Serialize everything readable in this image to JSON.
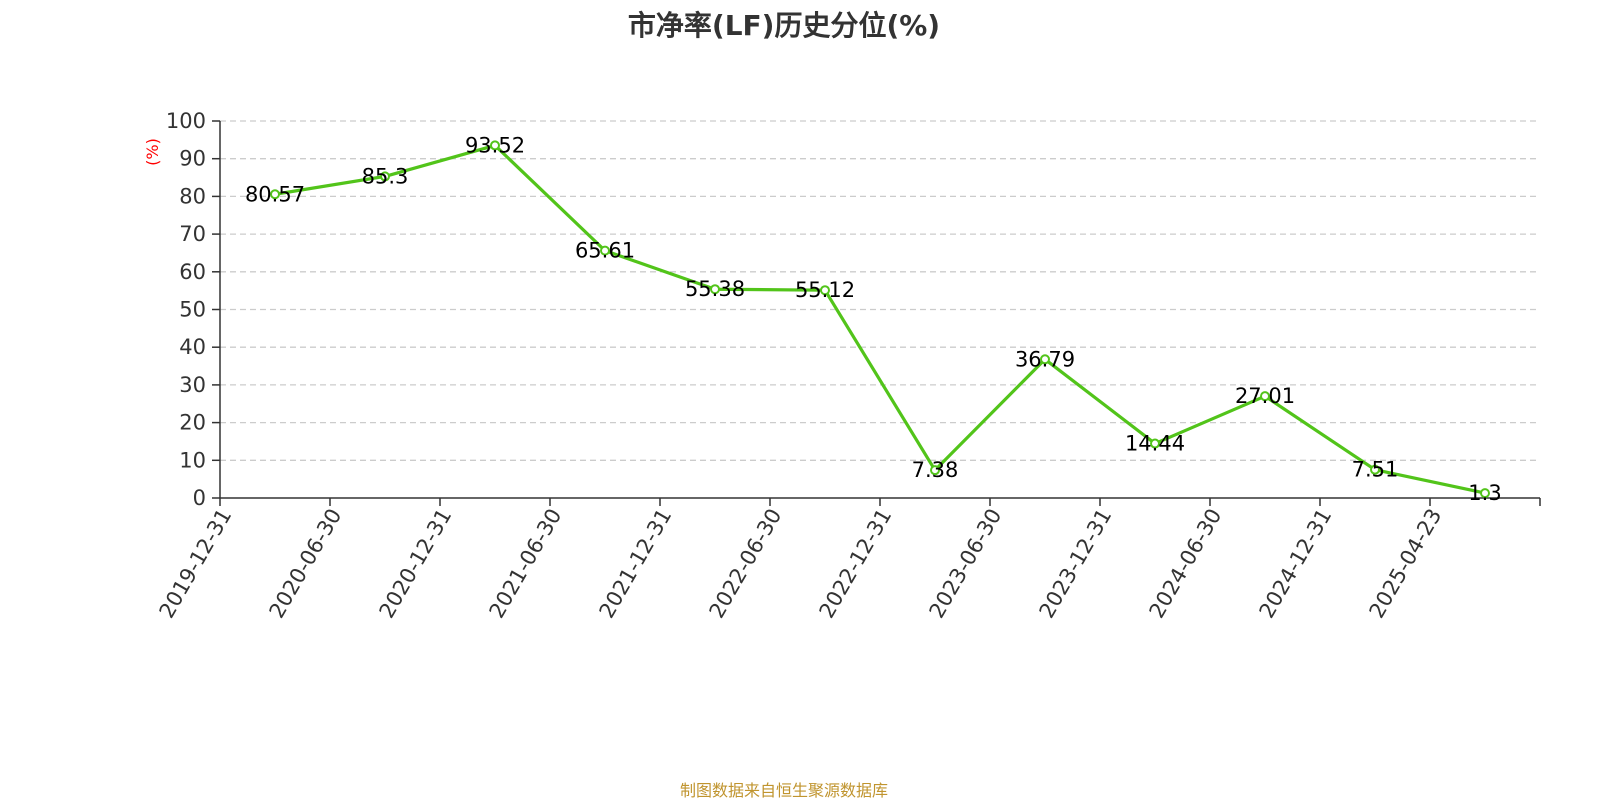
{
  "source_note": "制图数据来自恒生聚源数据库",
  "chart_data": {
    "type": "line",
    "title": "市净率(LF)历史分位(%)",
    "xlabel": "",
    "ylabel": "(%)",
    "ylim": [
      0,
      100
    ],
    "yticks": [
      "0",
      "10",
      "20",
      "30",
      "40",
      "50",
      "60",
      "70",
      "80",
      "90",
      "100"
    ],
    "categories": [
      "2019-12-31",
      "2020-06-30",
      "2020-12-31",
      "2021-06-30",
      "2021-12-31",
      "2022-06-30",
      "2022-12-31",
      "2023-06-30",
      "2023-12-31",
      "2024-06-30",
      "2024-12-31",
      "2025-04-23"
    ],
    "series": [
      {
        "values": [
          80.57,
          85.3,
          93.52,
          65.61,
          55.38,
          55.12,
          7.38,
          36.79,
          14.44,
          27.01,
          7.51,
          1.3
        ],
        "labels": [
          "80.57",
          "85.3",
          "93.52",
          "65.61",
          "55.38",
          "55.12",
          "7.38",
          "36.79",
          "14.44",
          "27.01",
          "7.51",
          "1.3"
        ],
        "color": "#52c41a"
      }
    ],
    "grid": true,
    "grid_color": "#cccccc",
    "ylabel_color": "#ff0000",
    "source_color": "#c0942e"
  }
}
